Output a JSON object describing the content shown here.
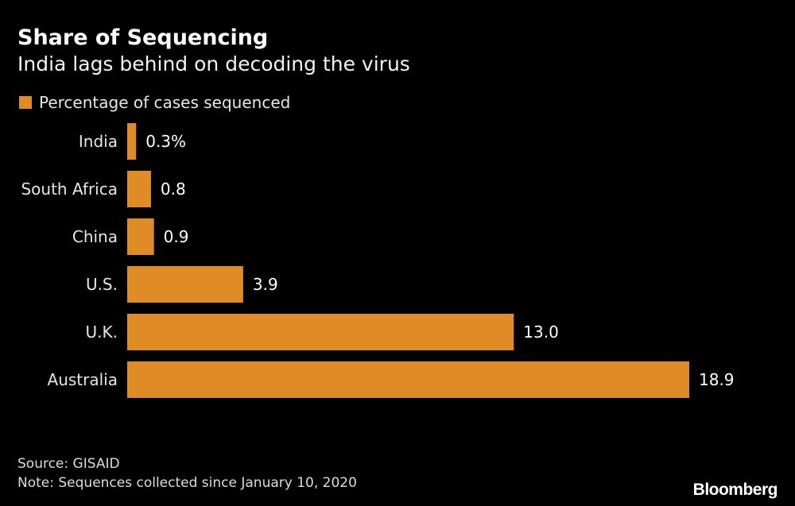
{
  "chart_data": {
    "type": "bar",
    "orientation": "horizontal",
    "title": "Share of Sequencing",
    "subtitle": "India lags behind on decoding the virus",
    "legend": [
      "Percentage of cases sequenced"
    ],
    "categories": [
      "India",
      "South Africa",
      "China",
      "U.S.",
      "U.K.",
      "Australia"
    ],
    "values": [
      0.3,
      0.8,
      0.9,
      3.9,
      13.0,
      18.9
    ],
    "value_labels": [
      "0.3%",
      "0.8",
      "0.9",
      "3.9",
      "13.0",
      "18.9"
    ],
    "xlim": [
      0,
      18.9
    ],
    "grid": false,
    "color": "#e08c26"
  },
  "footer": {
    "source": "Source: GISAID",
    "note": "Note: Sequences collected since January 10, 2020",
    "brand": "Bloomberg"
  }
}
